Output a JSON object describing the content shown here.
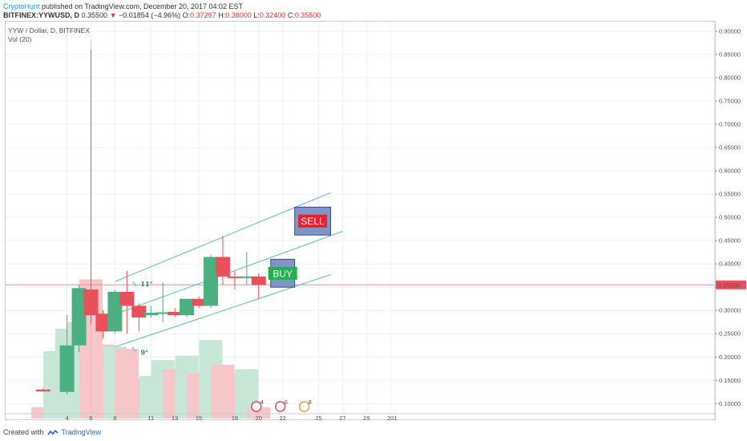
{
  "header": {
    "author": "CryptoHunt",
    "published": " published on TradingView.com, December 20, 2017 04:02 EST",
    "symbol": "BITFINEX:YYWUSD, D",
    "last": "0.35500",
    "change_arrow": "▼",
    "change": "−0.01854 (−4.96%)",
    "o_label": "O:",
    "o_value": "0.37297",
    "h_label": "H:",
    "h_value": "0.38000",
    "l_label": "L:",
    "l_value": "0.32400",
    "c_label": "C:",
    "c_value": "0.35500"
  },
  "legend": {
    "line1": "YYW / Dollar, D, BITFINEX",
    "line2": "Vol (20)"
  },
  "footer": {
    "created_with": "Created with",
    "brand": "TradingView"
  },
  "colors": {
    "up": "#4caf82",
    "down": "#e8505b",
    "up_vol": "#c8e6d6",
    "down_vol": "#f7c6c9",
    "channel": "#59c3a5",
    "price_line": "#f08a8a",
    "box_fill": "#7f95c9",
    "box_border": "#3a4a8a"
  },
  "chart_data": {
    "type": "candlestick",
    "yticks": [
      "0.10000",
      "0.15000",
      "0.20000",
      "0.25000",
      "0.30000",
      "0.35000",
      "0.40000",
      "0.45000",
      "0.50000",
      "0.55000",
      "0.60000",
      "0.65000",
      "0.70000",
      "0.75000",
      "0.80000",
      "0.85000",
      "0.90000"
    ],
    "xticks": [
      "4",
      "6",
      "8",
      "11",
      "13",
      "15",
      "18",
      "20",
      "22",
      "25",
      "27",
      "29",
      "201"
    ],
    "price_label": "0.35500",
    "candles": [
      {
        "day": 2,
        "o": 0.13,
        "h": 0.132,
        "l": 0.126,
        "c": 0.126
      },
      {
        "day": 4,
        "o": 0.125,
        "h": 0.29,
        "l": 0.12,
        "c": 0.225
      },
      {
        "day": 5,
        "o": 0.225,
        "h": 0.355,
        "l": 0.21,
        "c": 0.348
      },
      {
        "day": 6,
        "o": 0.345,
        "h": 0.86,
        "l": 0.27,
        "c": 0.29
      },
      {
        "day": 7,
        "o": 0.293,
        "h": 0.3,
        "l": 0.24,
        "c": 0.255
      },
      {
        "day": 8,
        "o": 0.255,
        "h": 0.345,
        "l": 0.25,
        "c": 0.34
      },
      {
        "day": 9,
        "o": 0.34,
        "h": 0.385,
        "l": 0.25,
        "c": 0.31
      },
      {
        "day": 10,
        "o": 0.31,
        "h": 0.315,
        "l": 0.255,
        "c": 0.285
      },
      {
        "day": 11,
        "o": 0.29,
        "h": 0.31,
        "l": 0.285,
        "c": 0.295
      },
      {
        "day": 12,
        "o": 0.293,
        "h": 0.36,
        "l": 0.275,
        "c": 0.296
      },
      {
        "day": 13,
        "o": 0.297,
        "h": 0.305,
        "l": 0.285,
        "c": 0.29
      },
      {
        "day": 14,
        "o": 0.29,
        "h": 0.325,
        "l": 0.285,
        "c": 0.325
      },
      {
        "day": 15,
        "o": 0.325,
        "h": 0.33,
        "l": 0.305,
        "c": 0.31
      },
      {
        "day": 16,
        "o": 0.31,
        "h": 0.42,
        "l": 0.305,
        "c": 0.415
      },
      {
        "day": 17,
        "o": 0.415,
        "h": 0.46,
        "l": 0.355,
        "c": 0.373
      },
      {
        "day": 18,
        "o": 0.373,
        "h": 0.385,
        "l": 0.345,
        "c": 0.37
      },
      {
        "day": 19,
        "o": 0.37,
        "h": 0.425,
        "l": 0.355,
        "c": 0.373
      },
      {
        "day": 20,
        "o": 0.373,
        "h": 0.38,
        "l": 0.324,
        "c": 0.355
      }
    ],
    "volume_heights": [
      {
        "day": 2,
        "v": 0.05,
        "up": false
      },
      {
        "day": 3,
        "v": 0.3,
        "up": true
      },
      {
        "day": 4,
        "v": 0.4,
        "up": true
      },
      {
        "day": 5,
        "v": 0.43,
        "up": true
      },
      {
        "day": 6,
        "v": 0.62,
        "up": false
      },
      {
        "day": 7,
        "v": 0.33,
        "up": false
      },
      {
        "day": 8,
        "v": 0.32,
        "up": true
      },
      {
        "day": 9,
        "v": 0.31,
        "up": false
      },
      {
        "day": 10,
        "v": 0.18,
        "up": false
      },
      {
        "day": 11,
        "v": 0.19,
        "up": true
      },
      {
        "day": 12,
        "v": 0.26,
        "up": true
      },
      {
        "day": 13,
        "v": 0.22,
        "up": false
      },
      {
        "day": 14,
        "v": 0.28,
        "up": true
      },
      {
        "day": 15,
        "v": 0.2,
        "up": false
      },
      {
        "day": 16,
        "v": 0.35,
        "up": true
      },
      {
        "day": 17,
        "v": 0.24,
        "up": false
      },
      {
        "day": 18,
        "v": 0.2,
        "up": false
      },
      {
        "day": 19,
        "v": 0.22,
        "up": true
      },
      {
        "day": 20,
        "v": 0.05,
        "up": false
      }
    ],
    "channel_lines": [
      {
        "x1": 8,
        "y1": 0.362,
        "x2": 26,
        "y2": 0.553
      },
      {
        "x1": 8,
        "y1": 0.292,
        "x2": 27,
        "y2": 0.47
      },
      {
        "x1": 8,
        "y1": 0.222,
        "x2": 26,
        "y2": 0.377
      }
    ],
    "annotations": {
      "angle_upper": "11°",
      "angle_lower": "9°",
      "sell_label": "SELL",
      "buy_label": "BUY",
      "event_counts": [
        "4",
        "6",
        "8"
      ]
    },
    "sell_box": {
      "x1": 23,
      "x2": 26,
      "y1": 0.462,
      "y2": 0.522
    },
    "buy_box": {
      "x1": 21,
      "x2": 23,
      "y1": 0.35,
      "y2": 0.41
    }
  }
}
